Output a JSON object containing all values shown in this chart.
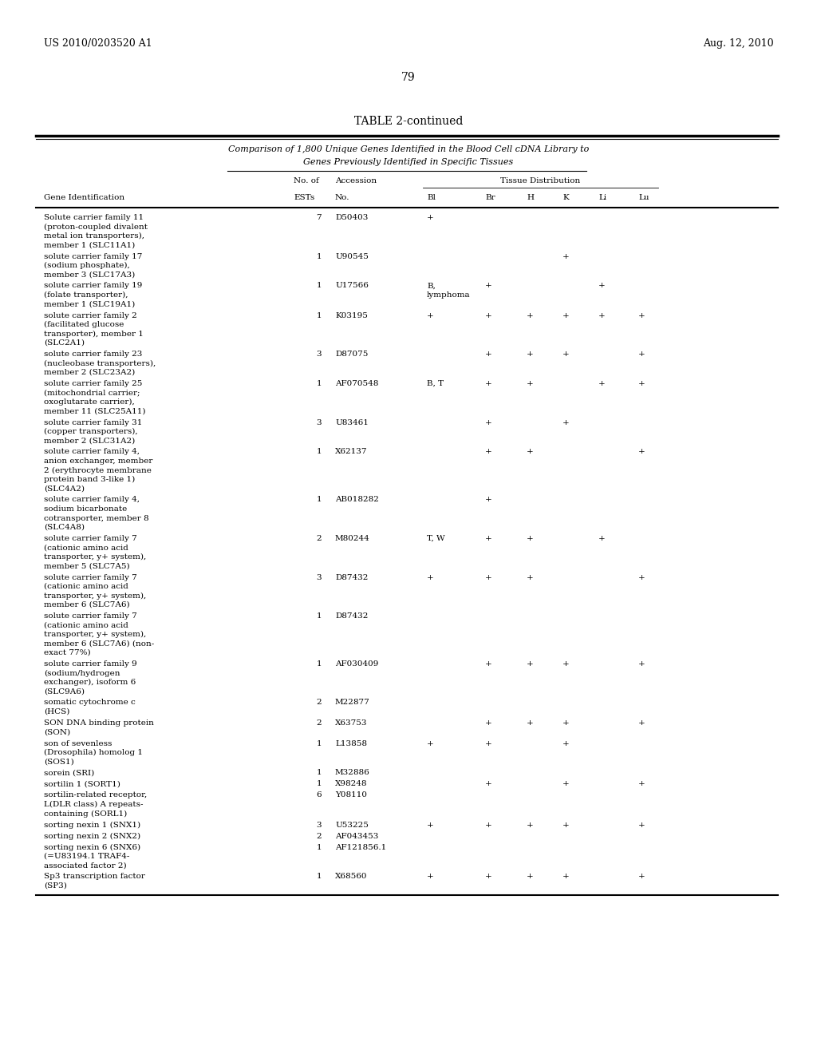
{
  "header_left": "US 2010/0203520 A1",
  "header_right": "Aug. 12, 2010",
  "page_number": "79",
  "table_title": "TABLE 2-continued",
  "table_subtitle_line1": "Comparison of 1,800 Unique Genes Identified in the Blood Cell cDNA Library to",
  "table_subtitle_line2": "Genes Previously Identified in Specific Tissues",
  "rows": [
    {
      "gene": "Solute carrier family 11\n(proton-coupled divalent\nmetal ion transporters),\nmember 1 (SLC11A1)",
      "ests": "7",
      "accession": "D50403",
      "bl": "+",
      "br": "",
      "h": "",
      "k": "",
      "li": "",
      "lu": ""
    },
    {
      "gene": "solute carrier family 17\n(sodium phosphate),\nmember 3 (SLC17A3)",
      "ests": "1",
      "accession": "U90545",
      "bl": "",
      "br": "",
      "h": "",
      "k": "+",
      "li": "",
      "lu": ""
    },
    {
      "gene": "solute carrier family 19\n(folate transporter),\nmember 1 (SLC19A1)",
      "ests": "1",
      "accession": "U17566",
      "bl": "B,\nlymphoma",
      "br": "+",
      "h": "",
      "k": "",
      "li": "+",
      "lu": ""
    },
    {
      "gene": "solute carrier family 2\n(facilitated glucose\ntransporter), member 1\n(SLC2A1)",
      "ests": "1",
      "accession": "K03195",
      "bl": "+",
      "br": "+",
      "h": "+",
      "k": "+",
      "li": "+",
      "lu": "+"
    },
    {
      "gene": "solute carrier family 23\n(nucleobase transporters),\nmember 2 (SLC23A2)",
      "ests": "3",
      "accession": "D87075",
      "bl": "",
      "br": "+",
      "h": "+",
      "k": "+",
      "li": "",
      "lu": "+"
    },
    {
      "gene": "solute carrier family 25\n(mitochondrial carrier;\noxoglutarate carrier),\nmember 11 (SLC25A11)",
      "ests": "1",
      "accession": "AF070548",
      "bl": "B, T",
      "br": "+",
      "h": "+",
      "k": "",
      "li": "+",
      "lu": "+"
    },
    {
      "gene": "solute carrier family 31\n(copper transporters),\nmember 2 (SLC31A2)",
      "ests": "3",
      "accession": "U83461",
      "bl": "",
      "br": "+",
      "h": "",
      "k": "+",
      "li": "",
      "lu": ""
    },
    {
      "gene": "solute carrier family 4,\nanion exchanger, member\n2 (erythrocyte membrane\nprotein band 3-like 1)\n(SLC4A2)",
      "ests": "1",
      "accession": "X62137",
      "bl": "",
      "br": "+",
      "h": "+",
      "k": "",
      "li": "",
      "lu": "+"
    },
    {
      "gene": "solute carrier family 4,\nsodium bicarbonate\ncotransporter, member 8\n(SLC4A8)",
      "ests": "1",
      "accession": "AB018282",
      "bl": "",
      "br": "+",
      "h": "",
      "k": "",
      "li": "",
      "lu": ""
    },
    {
      "gene": "solute carrier family 7\n(cationic amino acid\ntransporter, y+ system),\nmember 5 (SLC7A5)",
      "ests": "2",
      "accession": "M80244",
      "bl": "T, W",
      "br": "+",
      "h": "+",
      "k": "",
      "li": "+",
      "lu": ""
    },
    {
      "gene": "solute carrier family 7\n(cationic amino acid\ntransporter, y+ system),\nmember 6 (SLC7A6)",
      "ests": "3",
      "accession": "D87432",
      "bl": "+",
      "br": "+",
      "h": "+",
      "k": "",
      "li": "",
      "lu": "+"
    },
    {
      "gene": "solute carrier family 7\n(cationic amino acid\ntransporter, y+ system),\nmember 6 (SLC7A6) (non-\nexact 77%)",
      "ests": "1",
      "accession": "D87432",
      "bl": "",
      "br": "",
      "h": "",
      "k": "",
      "li": "",
      "lu": ""
    },
    {
      "gene": "solute carrier family 9\n(sodium/hydrogen\nexchanger), isoform 6\n(SLC9A6)",
      "ests": "1",
      "accession": "AF030409",
      "bl": "",
      "br": "+",
      "h": "+",
      "k": "+",
      "li": "",
      "lu": "+"
    },
    {
      "gene": "somatic cytochrome c\n(HCS)",
      "ests": "2",
      "accession": "M22877",
      "bl": "",
      "br": "",
      "h": "",
      "k": "",
      "li": "",
      "lu": ""
    },
    {
      "gene": "SON DNA binding protein\n(SON)",
      "ests": "2",
      "accession": "X63753",
      "bl": "",
      "br": "+",
      "h": "+",
      "k": "+",
      "li": "",
      "lu": "+"
    },
    {
      "gene": "son of sevenless\n(Drosophila) homolog 1\n(SOS1)",
      "ests": "1",
      "accession": "L13858",
      "bl": "+",
      "br": "+",
      "h": "",
      "k": "+",
      "li": "",
      "lu": ""
    },
    {
      "gene": "sorein (SRI)",
      "ests": "1",
      "accession": "M32886",
      "bl": "",
      "br": "",
      "h": "",
      "k": "",
      "li": "",
      "lu": ""
    },
    {
      "gene": "sortilin 1 (SORT1)",
      "ests": "1",
      "accession": "X98248",
      "bl": "",
      "br": "+",
      "h": "",
      "k": "+",
      "li": "",
      "lu": "+"
    },
    {
      "gene": "sortilin-related receptor,\nL(DLR class) A repeats-\ncontaining (SORL1)",
      "ests": "6",
      "accession": "Y08110",
      "bl": "",
      "br": "",
      "h": "",
      "k": "",
      "li": "",
      "lu": ""
    },
    {
      "gene": "sorting nexin 1 (SNX1)",
      "ests": "3",
      "accession": "U53225",
      "bl": "+",
      "br": "+",
      "h": "+",
      "k": "+",
      "li": "",
      "lu": "+"
    },
    {
      "gene": "sorting nexin 2 (SNX2)",
      "ests": "2",
      "accession": "AF043453",
      "bl": "",
      "br": "",
      "h": "",
      "k": "",
      "li": "",
      "lu": ""
    },
    {
      "gene": "sorting nexin 6 (SNX6)\n(=U83194.1 TRAF4-\nassociated factor 2)",
      "ests": "1",
      "accession": "AF121856.1",
      "bl": "",
      "br": "",
      "h": "",
      "k": "",
      "li": "",
      "lu": ""
    },
    {
      "gene": "Sp3 transcription factor\n(SP3)",
      "ests": "1",
      "accession": "X68560",
      "bl": "+",
      "br": "+",
      "h": "+",
      "k": "+",
      "li": "",
      "lu": "+"
    }
  ]
}
